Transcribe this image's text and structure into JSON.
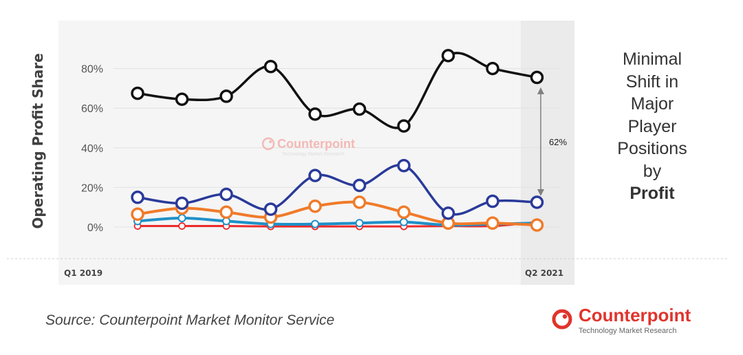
{
  "chart_data": {
    "type": "line",
    "ylabel": "Operating Profit Share",
    "y_ticks": [
      "0%",
      "20%",
      "40%",
      "60%",
      "80%"
    ],
    "ylim": [
      0,
      90
    ],
    "x_labels_shown": {
      "start": "Q1 2019",
      "end": "Q2 2021"
    },
    "grid": "horizontal",
    "series": [
      {
        "color": "#111111",
        "values": [
          67.5,
          64.5,
          66,
          81,
          57,
          59.5,
          51,
          86.5,
          80,
          75.5
        ]
      },
      {
        "color": "#2a3a9a",
        "values": [
          15,
          12,
          16.5,
          9,
          26,
          21,
          31,
          7,
          13,
          12.5
        ]
      },
      {
        "color": "#f07b2a",
        "values": [
          6.5,
          9.5,
          7.5,
          5,
          10.5,
          12.5,
          7.5,
          2,
          2,
          1
        ]
      },
      {
        "color": "#1e90c8",
        "values": [
          3,
          4.5,
          3,
          1.5,
          1.5,
          2,
          2.5,
          1,
          1.5,
          2
        ]
      },
      {
        "color": "#ee2b2b",
        "values": [
          0.5,
          0.5,
          0.5,
          0.3,
          0.3,
          0.3,
          0.3,
          0.5,
          0.5,
          2.5
        ]
      }
    ],
    "annotation": {
      "text": "62%"
    },
    "watermark": {
      "name": "Counterpoint",
      "tagline": "Technology Market Research"
    }
  },
  "side_text": {
    "lines": [
      "Minimal",
      "Shift in",
      "Major",
      "Player",
      "Positions",
      "by"
    ],
    "bold": "Profit"
  },
  "source": "Source: Counterpoint Market Monitor Service",
  "logo": {
    "name": "Counterpoint",
    "tagline": "Technology Market Research",
    "color": "#e0342c"
  }
}
